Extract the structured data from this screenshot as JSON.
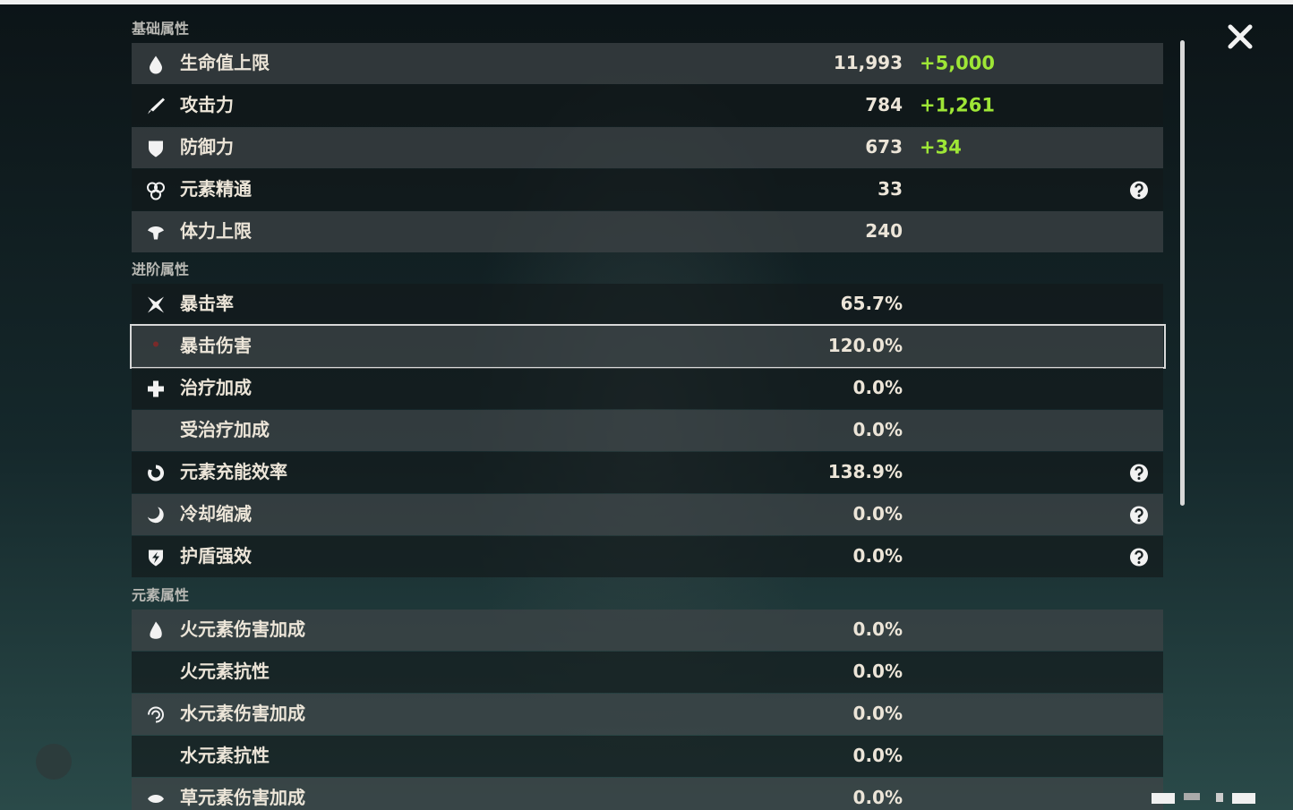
{
  "sections": [
    {
      "title": "基础属性",
      "rows": [
        {
          "label": "生命值上限",
          "value": "11,993",
          "bonus": "+5,000"
        },
        {
          "label": "攻击力",
          "value": "784",
          "bonus": "+1,261"
        },
        {
          "label": "防御力",
          "value": "673",
          "bonus": "+34"
        },
        {
          "label": "元素精通",
          "value": "33"
        },
        {
          "label": "体力上限",
          "value": "240"
        }
      ]
    },
    {
      "title": "进阶属性",
      "rows": [
        {
          "label": "暴击率",
          "value": "65.7%"
        },
        {
          "label": "暴击伤害",
          "value": "120.0%"
        },
        {
          "label": "治疗加成",
          "value": "0.0%"
        },
        {
          "label": "受治疗加成",
          "value": "0.0%"
        },
        {
          "label": "元素充能效率",
          "value": "138.9%"
        },
        {
          "label": "冷却缩减",
          "value": "0.0%"
        },
        {
          "label": "护盾强效",
          "value": "0.0%"
        }
      ]
    },
    {
      "title": "元素属性",
      "rows": [
        {
          "label": "火元素伤害加成",
          "value": "0.0%"
        },
        {
          "label": "火元素抗性",
          "value": "0.0%"
        },
        {
          "label": "水元素伤害加成",
          "value": "0.0%"
        },
        {
          "label": "水元素抗性",
          "value": "0.0%"
        },
        {
          "label": "草元素伤害加成",
          "value": "0.0%"
        }
      ]
    }
  ]
}
